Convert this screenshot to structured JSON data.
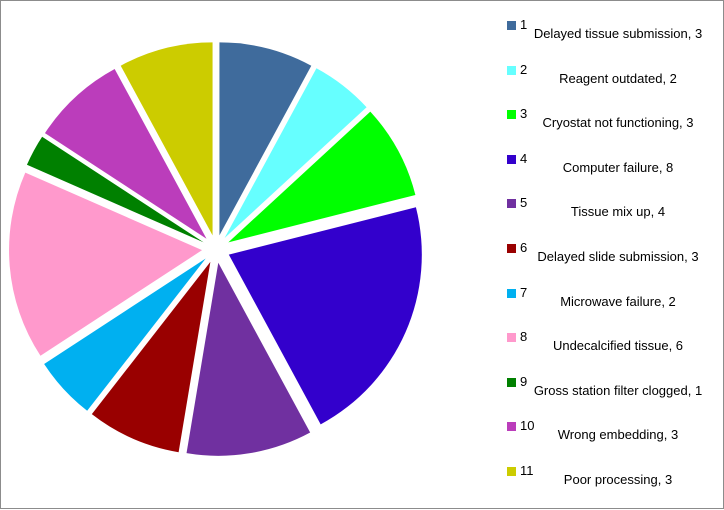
{
  "chart_data": {
    "type": "pie",
    "title": "",
    "categories": [
      "1",
      "2",
      "3",
      "4",
      "5",
      "6",
      "7",
      "8",
      "9",
      "10",
      "11"
    ],
    "values": [
      3,
      2,
      3,
      8,
      4,
      3,
      2,
      6,
      1,
      3,
      3
    ],
    "labels": [
      "Delayed tissue submission, 3",
      "Reagent outdated, 2",
      "Cryostat not functioning, 3",
      "Computer failure, 8",
      "Tissue mix up, 4",
      "Delayed slide submission, 3",
      "Microwave failure, 2",
      "Undecalcified tissue, 6",
      "Gross station filter clogged, 1",
      "Wrong embedding, 3",
      "Poor processing, 3"
    ],
    "colors": [
      "#3F6B9C",
      "#66FFFF",
      "#00FF00",
      "#3300CC",
      "#7030A0",
      "#990000",
      "#00B0F0",
      "#FF99CC",
      "#008000",
      "#BB3DBB",
      "#CCCC00"
    ],
    "legend_position": "right",
    "exploded": true
  }
}
